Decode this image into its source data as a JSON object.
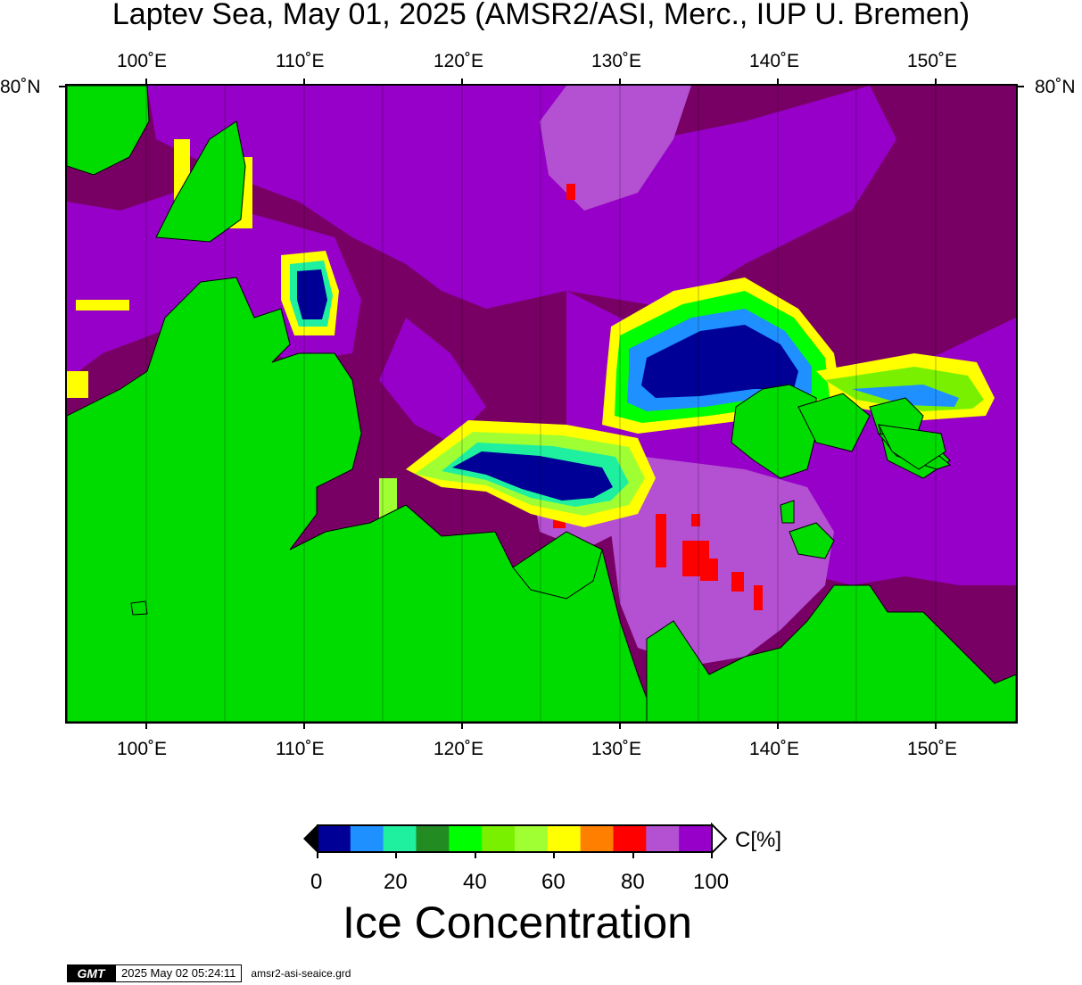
{
  "title": "Laptev Sea, May 01, 2025 (AMSR2/ASI, Merc., IUP U. Bremen)",
  "axes": {
    "lon_labels": [
      "100˚E",
      "110˚E",
      "120˚E",
      "130˚E",
      "140˚E",
      "150˚E"
    ],
    "lat_label_left": "80˚N",
    "lat_label_right": "80˚N"
  },
  "colors": {
    "land": "#00dc00",
    "c100": "#780064",
    "c95": "#9600c8",
    "c90": "#b450d2",
    "c85": "#ff0000",
    "c80": "#ff8000",
    "c70": "#ffff00",
    "c60": "#a0ff32",
    "c50": "#78f000",
    "c40": "#00ff00",
    "c30": "#228b22",
    "c20": "#1ef0a0",
    "c10": "#1e90ff",
    "c0": "#000096"
  },
  "colorbar": {
    "unit": "C[%]",
    "ticks": [
      "0",
      "20",
      "40",
      "60",
      "80",
      "100"
    ],
    "title": "Ice Concentration",
    "segments": [
      "#000096",
      "#1e90ff",
      "#1ef0a0",
      "#228b22",
      "#00ff00",
      "#78f000",
      "#a0ff32",
      "#ffff00",
      "#ff8000",
      "#ff0000",
      "#b450d2",
      "#9600c8"
    ]
  },
  "footer": {
    "logo": "GMT",
    "timestamp": "2025 May 02 05:24:11",
    "filename": "amsr2-asi-seaice.grd"
  }
}
